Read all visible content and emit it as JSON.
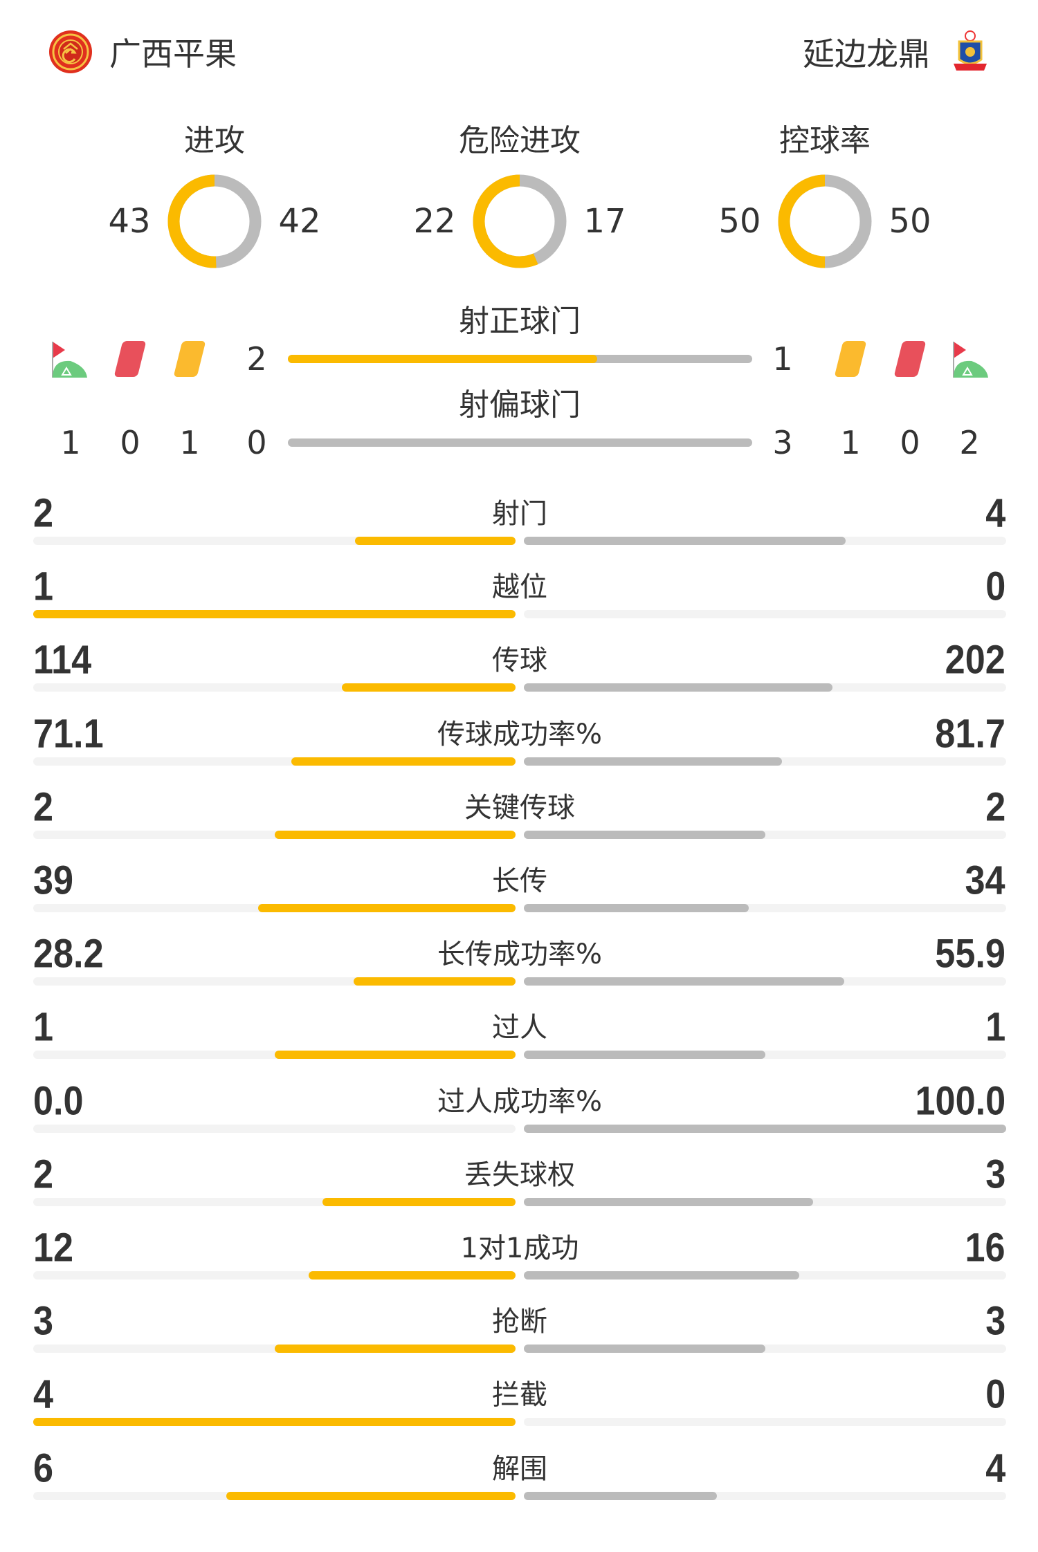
{
  "colors": {
    "home": "#FBBA00",
    "away": "#BBBBBB",
    "track": "#F3F3F3",
    "red_card": "#E8505B",
    "yellow_card": "#FBBA2E",
    "corner_flag": "#E83A4A",
    "corner_grass": "#6CCB7E"
  },
  "header": {
    "home": {
      "name": "广西平果",
      "logo": "guangxi-pingguo-logo"
    },
    "away": {
      "name": "延边龙鼎",
      "logo": "yanbian-longding-logo"
    }
  },
  "donuts": [
    {
      "title": "进攻",
      "home": 43,
      "away": 42
    },
    {
      "title": "危险进攻",
      "home": 22,
      "away": 17
    },
    {
      "title": "控球率",
      "home": 50,
      "away": 50
    }
  ],
  "shots": {
    "on_target": {
      "label": "射正球门",
      "home": 2,
      "away": 1
    },
    "off_target": {
      "label": "射偏球门",
      "home": 0,
      "away": 3
    }
  },
  "events": {
    "home": {
      "corners": 1,
      "red_cards": 0,
      "yellow_cards": 1,
      "icons": [
        "corner-flag-icon",
        "red-card-icon",
        "yellow-card-icon"
      ]
    },
    "away": {
      "corners": 2,
      "red_cards": 0,
      "yellow_cards": 1,
      "icons": [
        "yellow-card-icon",
        "red-card-icon",
        "corner-flag-icon"
      ]
    }
  },
  "stats": [
    {
      "label": "射门",
      "home": "2",
      "away": "4"
    },
    {
      "label": "越位",
      "home": "1",
      "away": "0"
    },
    {
      "label": "传球",
      "home": "114",
      "away": "202"
    },
    {
      "label": "传球成功率%",
      "home": "71.1",
      "away": "81.7"
    },
    {
      "label": "关键传球",
      "home": "2",
      "away": "2"
    },
    {
      "label": "长传",
      "home": "39",
      "away": "34"
    },
    {
      "label": "长传成功率%",
      "home": "28.2",
      "away": "55.9"
    },
    {
      "label": "过人",
      "home": "1",
      "away": "1"
    },
    {
      "label": "过人成功率%",
      "home": "0.0",
      "away": "100.0"
    },
    {
      "label": "丢失球权",
      "home": "2",
      "away": "3"
    },
    {
      "label": "1对1成功",
      "home": "12",
      "away": "16"
    },
    {
      "label": "抢断",
      "home": "3",
      "away": "3"
    },
    {
      "label": "拦截",
      "home": "4",
      "away": "0"
    },
    {
      "label": "解围",
      "home": "6",
      "away": "4"
    }
  ]
}
